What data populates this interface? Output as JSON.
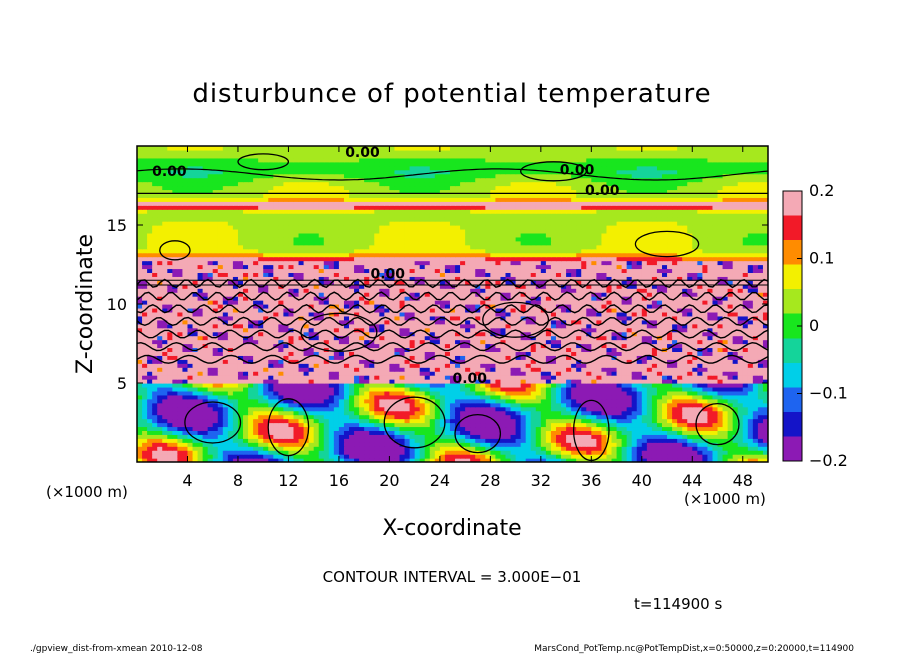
{
  "chart_data": {
    "type": "heatmap",
    "title": "disturbunce of potential temperature",
    "xlabel": "X-coordinate",
    "ylabel": "Z-coordinate",
    "x_unit_left": "(×1000 m)",
    "x_unit_right": "(×1000 m)",
    "xlim": [
      0,
      50
    ],
    "ylim": [
      0,
      20
    ],
    "x_ticks": [
      "4",
      "8",
      "12",
      "16",
      "20",
      "24",
      "28",
      "32",
      "36",
      "40",
      "44",
      "48"
    ],
    "y_ticks": [
      "5",
      "10",
      "15"
    ],
    "colorbar": {
      "ticks": [
        "0.2",
        "0.1",
        "0",
        "−0.1",
        "−0.2"
      ],
      "range": [
        -0.2,
        0.2
      ],
      "colors": [
        "#f4a9b5",
        "#f21a28",
        "#ff8c00",
        "#f3f000",
        "#a6e81e",
        "#18e61e",
        "#14d49a",
        "#00cfe8",
        "#1e64f0",
        "#1414c8",
        "#8c1ab4"
      ]
    },
    "contour_labels": [
      "0.00",
      "0.00",
      "0.00",
      "0.00",
      "0.00",
      "0.00"
    ],
    "contour_interval": "CONTOUR INTERVAL = 3.000E−01",
    "time": "t=114900 s",
    "footer_left": "./gpview_dist-from-xmean   2010-12-08",
    "footer_right": "MarsCond_PotTemp.nc@PotTempDist,x=0:50000,z=0:20000,t=114900"
  }
}
